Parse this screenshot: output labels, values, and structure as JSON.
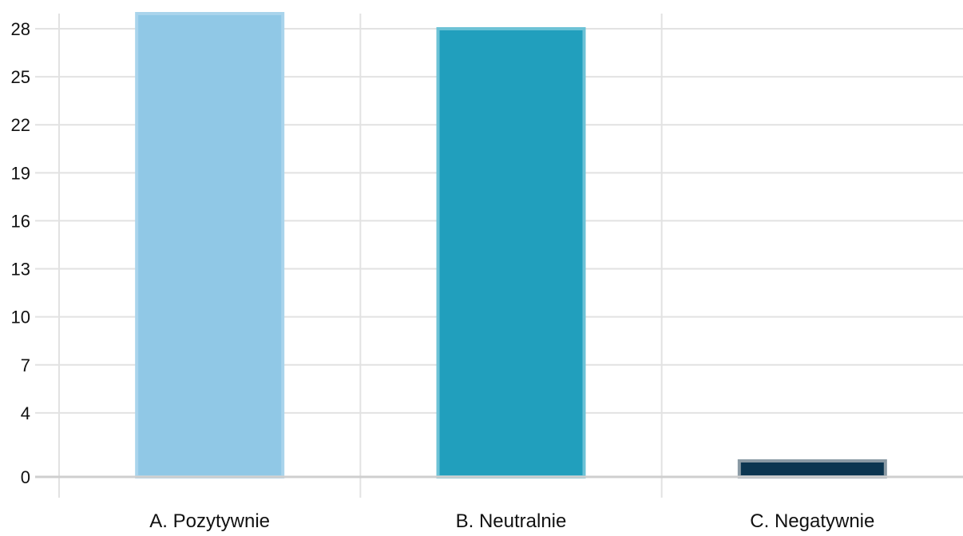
{
  "chart_data": {
    "type": "bar",
    "title": "",
    "xlabel": "",
    "ylabel": "",
    "categories": [
      "A. Pozytywnie",
      "B. Neutralnie",
      "C. Negatywnie"
    ],
    "values": [
      29,
      28,
      1
    ],
    "y_ticks": [
      0,
      4,
      7,
      10,
      13,
      16,
      19,
      22,
      25,
      28
    ],
    "ylim": [
      0,
      28
    ],
    "grid": true,
    "legend": "none",
    "colors": [
      "#90c8e6",
      "#219fbd",
      "#0b3550"
    ],
    "border_colors": [
      "#a9d4ec",
      "#6cc2d6",
      "#8a9aa4"
    ]
  }
}
